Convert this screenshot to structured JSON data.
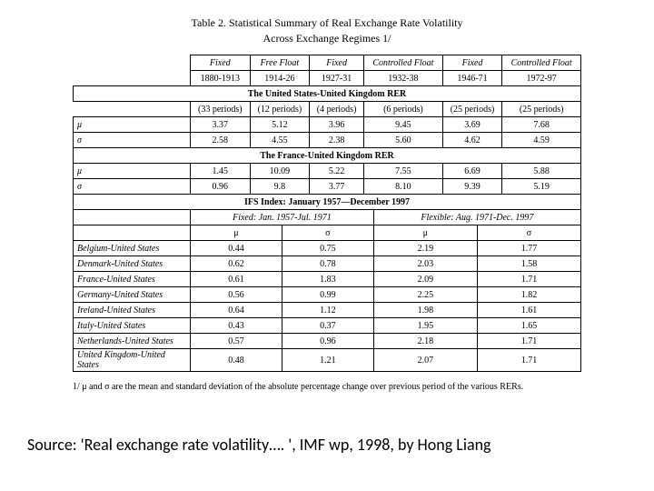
{
  "title": "Table 2. Statistical Summary of Real Exchange Rate Volatility",
  "subtitle": "Across Exchange Regimes 1/",
  "regimes": [
    {
      "name": "Fixed",
      "range": "1880-1913"
    },
    {
      "name": "Free Float",
      "range": "1914-26"
    },
    {
      "name": "Fixed",
      "range": "1927-31"
    },
    {
      "name": "Controlled Float",
      "range": "1932-38"
    },
    {
      "name": "Fixed",
      "range": "1946-71"
    },
    {
      "name": "Controlled Float",
      "range": "1972-97"
    }
  ],
  "section1": {
    "header": "The United States-United Kingdom RER",
    "periods": [
      "(33 periods)",
      "(12 periods)",
      "(4 periods)",
      "(6 periods)",
      "(25 periods)",
      "(25 periods)"
    ],
    "mu": [
      "3.37",
      "5.12",
      "3.96",
      "9.45",
      "3.69",
      "7.68"
    ],
    "sigma": [
      "2.58",
      "4.55",
      "2.38",
      "5.60",
      "4.62",
      "4.59"
    ]
  },
  "section2": {
    "header": "The France-United Kingdom RER",
    "mu": [
      "1.45",
      "10.09",
      "5.22",
      "7.55",
      "6.69",
      "5.88"
    ],
    "sigma": [
      "0.96",
      "9.8",
      "3.77",
      "8.10",
      "9.39",
      "5.19"
    ]
  },
  "section3": {
    "header": "IFS Index: January 1957—December 1997",
    "col_left": "Fixed: Jan. 1957-Jul. 1971",
    "col_right": "Flexible: Aug. 1971-Dec. 1997",
    "sym_mu": "μ",
    "sym_sigma": "σ",
    "rows": [
      {
        "label": "Belgium-United States",
        "v": [
          "0.44",
          "0.75",
          "2.19",
          "1.77"
        ]
      },
      {
        "label": "Denmark-United States",
        "v": [
          "0.62",
          "0.78",
          "2.03",
          "1.58"
        ]
      },
      {
        "label": "France-United States",
        "v": [
          "0.61",
          "1.83",
          "2.09",
          "1.71"
        ]
      },
      {
        "label": "Germany-United States",
        "v": [
          "0.56",
          "0.99",
          "2.25",
          "1.82"
        ]
      },
      {
        "label": "Ireland-United States",
        "v": [
          "0.64",
          "1.12",
          "1.98",
          "1.61"
        ]
      },
      {
        "label": "Italy-United States",
        "v": [
          "0.43",
          "0.37",
          "1.95",
          "1.65"
        ]
      },
      {
        "label": "Netherlands-United States",
        "v": [
          "0.57",
          "0.96",
          "2.18",
          "1.71"
        ]
      },
      {
        "label": "United Kingdom-United States",
        "v": [
          "0.48",
          "1.21",
          "2.07",
          "1.71"
        ]
      }
    ]
  },
  "footnote": "1/ μ and σ are the mean and standard deviation of the absolute percentage change over previous period of the various RERs.",
  "source": "Source:  'Real exchange rate volatility…. ', IMF wp, 1998, by Hong Liang",
  "labels": {
    "mu": "μ",
    "sigma": "σ"
  }
}
